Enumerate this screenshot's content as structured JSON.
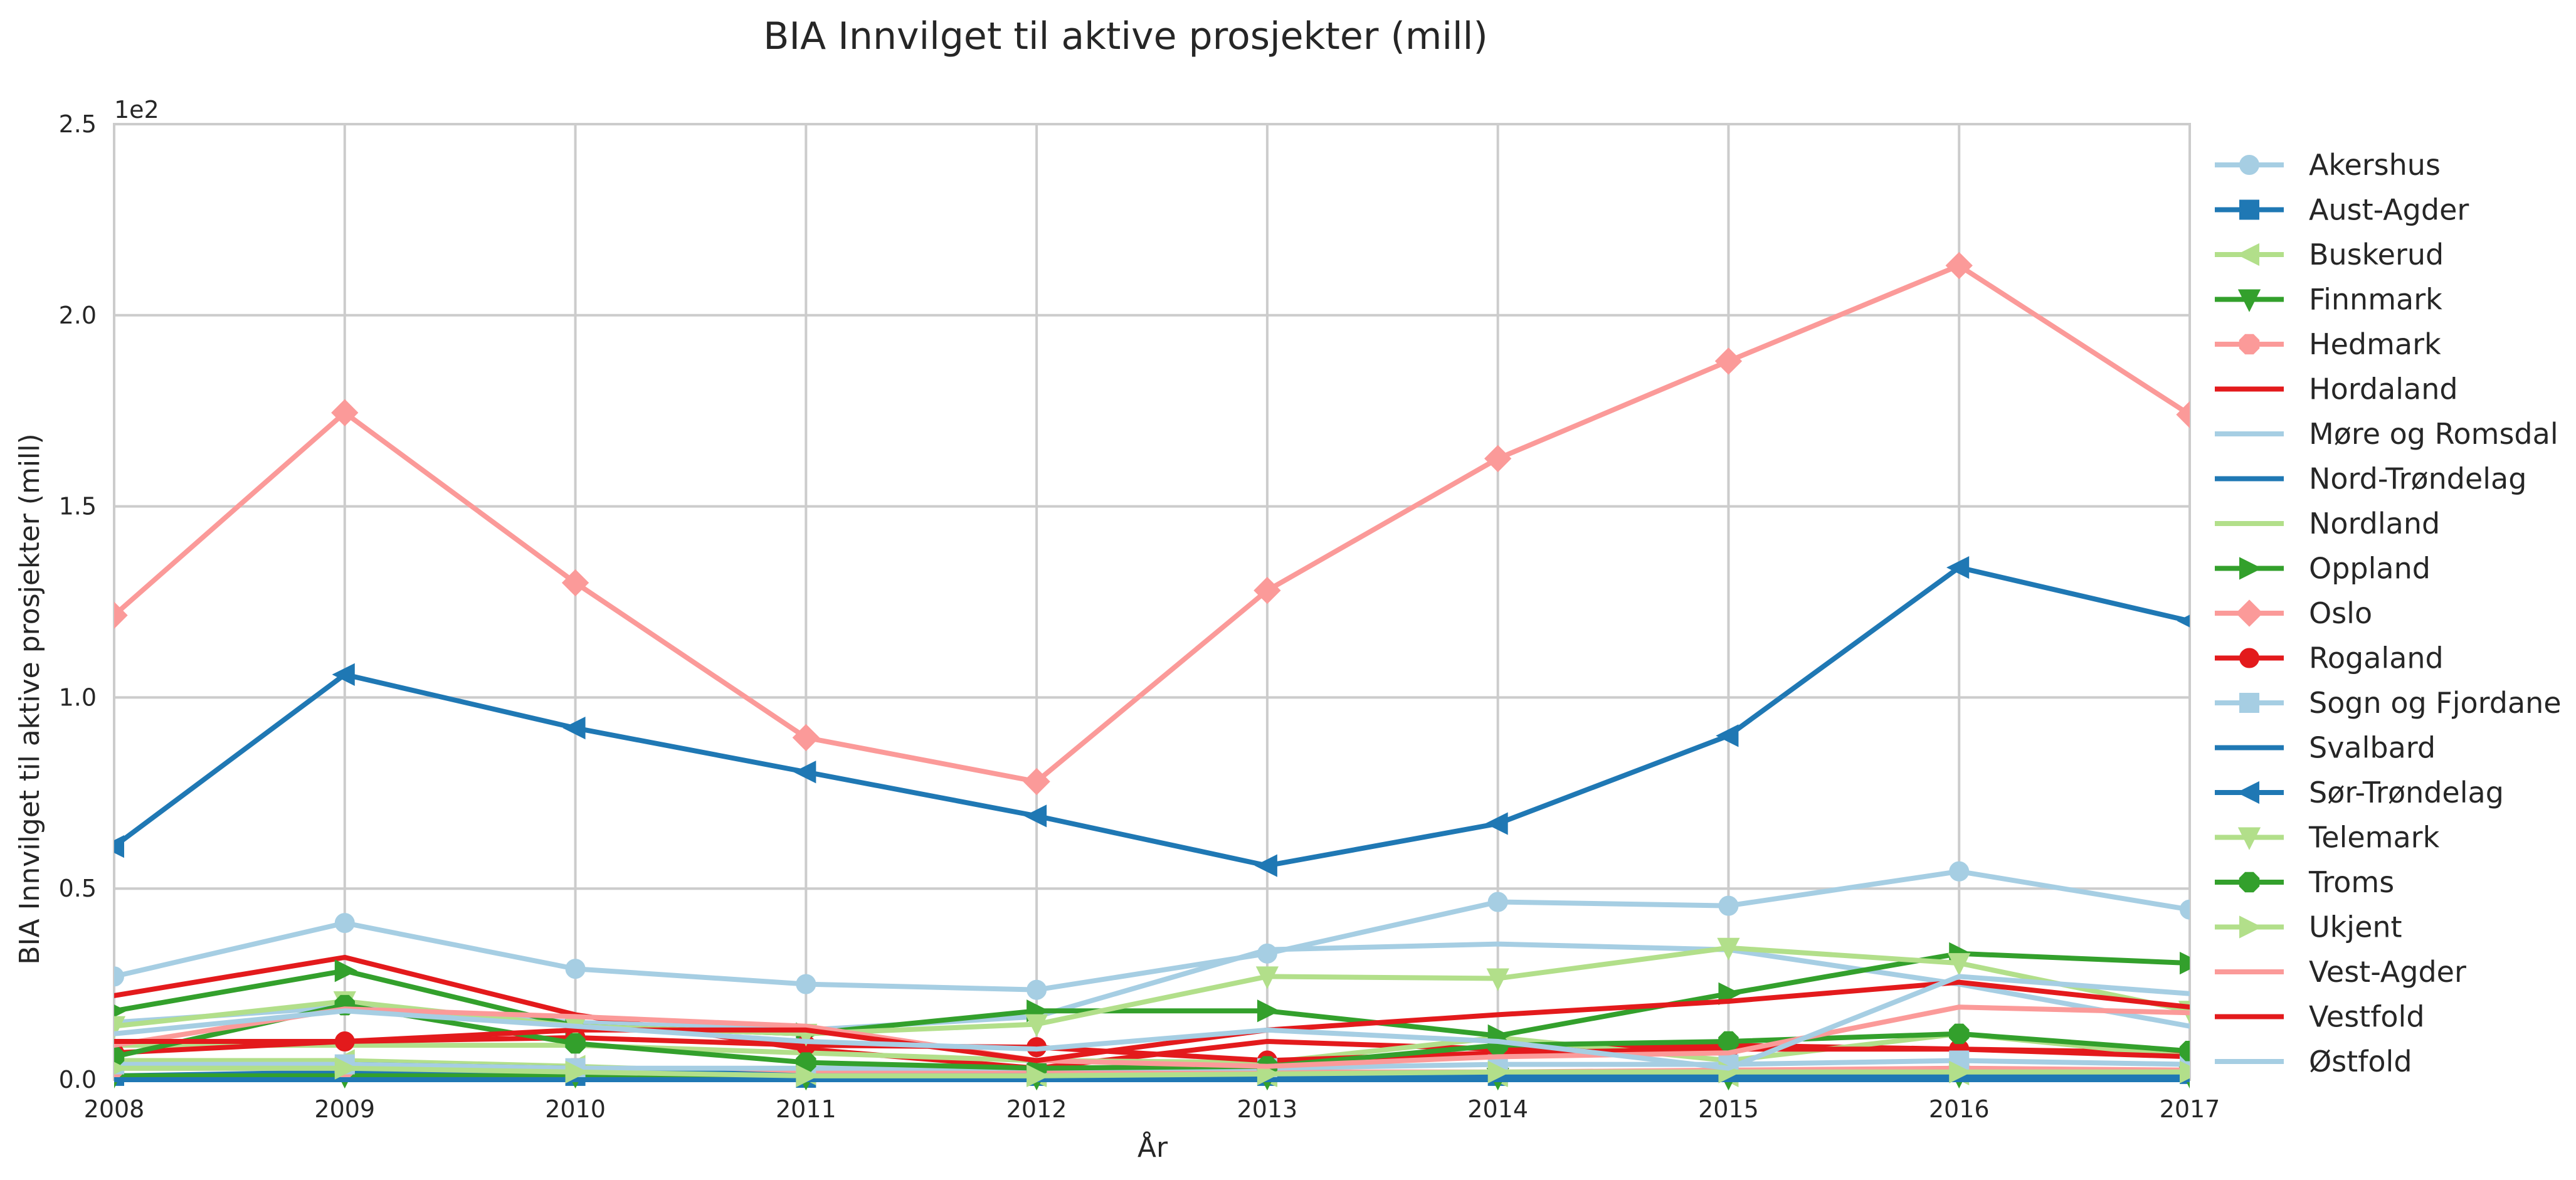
{
  "chart_data": {
    "type": "line",
    "title": "BIA Innvilget til aktive prosjekter (mill)",
    "xlabel": "År",
    "ylabel": "BIA Innvilget til aktive prosjekter (mill)",
    "y_offset_text": "1e2",
    "x": [
      2008,
      2009,
      2010,
      2011,
      2012,
      2013,
      2014,
      2015,
      2016,
      2017
    ],
    "x_tick_labels": [
      "2008",
      "2009",
      "2010",
      "2011",
      "2012",
      "2013",
      "2014",
      "2015",
      "2016",
      "2017"
    ],
    "xlim": [
      2008,
      2017
    ],
    "ylim": [
      0,
      250
    ],
    "y_ticks": [
      0,
      50,
      100,
      150,
      200,
      250
    ],
    "y_tick_labels": [
      "0.0",
      "0.5",
      "1.0",
      "1.5",
      "2.0",
      "2.5"
    ],
    "grid": true,
    "legend_position": "right, outside plot",
    "series": [
      {
        "name": "Akershus",
        "color": "#a6cee3",
        "marker": "circle",
        "values": [
          27,
          41,
          29,
          25,
          23.5,
          33,
          46.5,
          45.5,
          54.5,
          44.5
        ]
      },
      {
        "name": "Aust-Agder",
        "color": "#1f78b4",
        "marker": "square",
        "values": [
          1,
          2,
          1,
          0.5,
          1,
          1,
          1,
          2,
          3,
          1.5
        ]
      },
      {
        "name": "Buskerud",
        "color": "#b2df8a",
        "marker": "triangle-left",
        "values": [
          5,
          5,
          3.5,
          1.5,
          1,
          1,
          1,
          1,
          1.5,
          1
        ]
      },
      {
        "name": "Finnmark",
        "color": "#33a02c",
        "marker": "triangle-down",
        "values": [
          1,
          1,
          1,
          0.5,
          0.5,
          0.5,
          0.5,
          0.5,
          1,
          1
        ]
      },
      {
        "name": "Hedmark",
        "color": "#fb9a99",
        "marker": "octagon",
        "values": [
          3,
          3,
          3,
          2,
          2,
          2,
          2,
          2.5,
          3,
          2.5
        ]
      },
      {
        "name": "Hordaland",
        "color": "#e31a1c",
        "marker": "none",
        "values": [
          22,
          32,
          17,
          8,
          3,
          10,
          8,
          9,
          8,
          7
        ]
      },
      {
        "name": "Møre og Romsdal",
        "color": "#a6cee3",
        "marker": "none",
        "values": [
          15,
          19,
          15,
          13,
          16.5,
          34,
          35.5,
          34,
          25,
          14
        ]
      },
      {
        "name": "Nord-Trøndelag",
        "color": "#1f78b4",
        "marker": "none",
        "values": [
          3,
          4,
          3,
          1,
          1,
          1,
          1,
          1,
          1,
          1
        ]
      },
      {
        "name": "Nordland",
        "color": "#b2df8a",
        "marker": "none",
        "values": [
          9,
          9,
          9,
          7,
          5,
          4.5,
          11,
          5,
          12,
          6
        ]
      },
      {
        "name": "Oppland",
        "color": "#33a02c",
        "marker": "triangle-right",
        "values": [
          18,
          28.5,
          14,
          12,
          18,
          18,
          11.5,
          22.5,
          33,
          30.5
        ]
      },
      {
        "name": "Oslo",
        "color": "#fb9a99",
        "marker": "diamond",
        "values": [
          121.5,
          174.5,
          130,
          89.5,
          78,
          128,
          162.5,
          188,
          213,
          174
        ]
      },
      {
        "name": "Rogaland",
        "color": "#e31a1c",
        "marker": "circle",
        "values": [
          7,
          10,
          11,
          9,
          8.5,
          5,
          7,
          8,
          8,
          6
        ]
      },
      {
        "name": "Sogn og Fjordane",
        "color": "#a6cee3",
        "marker": "square",
        "values": [
          4,
          4,
          3,
          3,
          3,
          3,
          4,
          4,
          5,
          4
        ]
      },
      {
        "name": "Svalbard",
        "color": "#1f78b4",
        "marker": "none",
        "values": [
          0,
          0,
          0,
          0,
          0,
          0,
          0,
          0,
          0,
          0
        ]
      },
      {
        "name": "Sør-Trøndelag",
        "color": "#1f78b4",
        "marker": "triangle-left",
        "values": [
          61,
          106,
          92,
          80.5,
          69,
          56,
          67,
          90,
          134,
          120
        ]
      },
      {
        "name": "Telemark",
        "color": "#b2df8a",
        "marker": "triangle-down",
        "values": [
          14,
          20.5,
          14,
          12,
          14.5,
          27,
          26.5,
          34.5,
          30.5,
          18
        ]
      },
      {
        "name": "Troms",
        "color": "#33a02c",
        "marker": "octagon",
        "values": [
          6,
          19.5,
          9.5,
          4.5,
          3,
          3.5,
          9,
          10,
          12,
          7.5
        ]
      },
      {
        "name": "Ukjent",
        "color": "#b2df8a",
        "marker": "triangle-right",
        "values": [
          3,
          3,
          2,
          1,
          1,
          1.5,
          2,
          2,
          2,
          2
        ]
      },
      {
        "name": "Vest-Agder",
        "color": "#fb9a99",
        "marker": "none",
        "values": [
          9,
          18.5,
          16.5,
          14,
          5,
          3.5,
          6,
          7,
          19,
          17.5
        ]
      },
      {
        "name": "Vestfold",
        "color": "#e31a1c",
        "marker": "none",
        "values": [
          10,
          10,
          13,
          13,
          5,
          13,
          17,
          20.5,
          25.5,
          19
        ]
      },
      {
        "name": "Østfold",
        "color": "#a6cee3",
        "marker": "none",
        "values": [
          12,
          18,
          14,
          10,
          8,
          13,
          10,
          3,
          27,
          22.5
        ]
      }
    ]
  }
}
